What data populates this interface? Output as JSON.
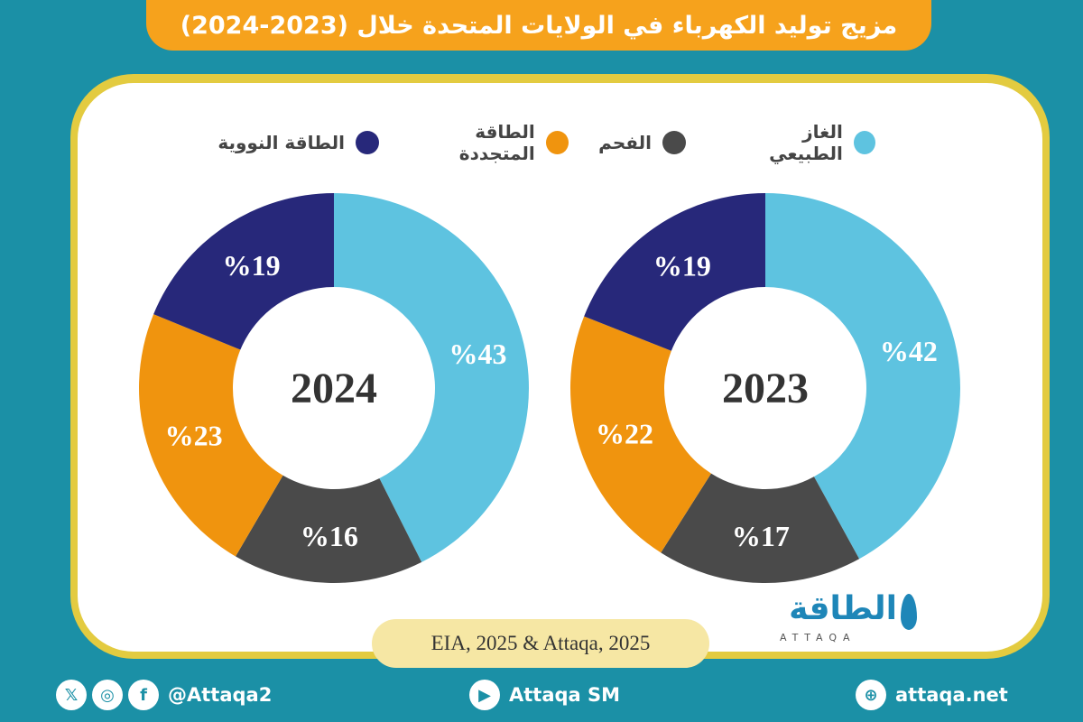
{
  "title": "مزيج توليد الكهرباء في الولايات المتحدة خلال (2023-2024)",
  "legend": [
    {
      "label": "الغاز الطبيعي",
      "color": "#5ec3e0"
    },
    {
      "label": "الفحم",
      "color": "#4a4a4a"
    },
    {
      "label": "الطاقة المتجددة",
      "color": "#f0940e"
    },
    {
      "label": "الطاقة النووية",
      "color": "#27287a"
    }
  ],
  "chart_data": [
    {
      "type": "pie",
      "title": "2023",
      "categories": [
        "الغاز الطبيعي",
        "الفحم",
        "الطاقة المتجددة",
        "الطاقة النووية"
      ],
      "values": [
        42,
        17,
        22,
        19
      ],
      "labels": [
        "%42",
        "%17",
        "%22",
        "%19"
      ],
      "colors": [
        "#5ec3e0",
        "#4a4a4a",
        "#f0940e",
        "#27287a"
      ]
    },
    {
      "type": "pie",
      "title": "2024",
      "categories": [
        "الغاز الطبيعي",
        "الفحم",
        "الطاقة المتجددة",
        "الطاقة النووية"
      ],
      "values": [
        43,
        16,
        23,
        19
      ],
      "labels": [
        "%43",
        "%16",
        "%23",
        "%19"
      ],
      "colors": [
        "#5ec3e0",
        "#4a4a4a",
        "#f0940e",
        "#27287a"
      ]
    }
  ],
  "source": "EIA, 2025 & Attaqa, 2025",
  "logo": {
    "arabic": "الطاقة",
    "english": "ATTAQA"
  },
  "footer": {
    "social_handle": "@Attaqa2",
    "youtube": "Attaqa SM",
    "website": "attaqa.net",
    "icons": [
      "x-icon",
      "instagram-icon",
      "facebook-icon",
      "youtube-icon",
      "globe-icon"
    ]
  }
}
